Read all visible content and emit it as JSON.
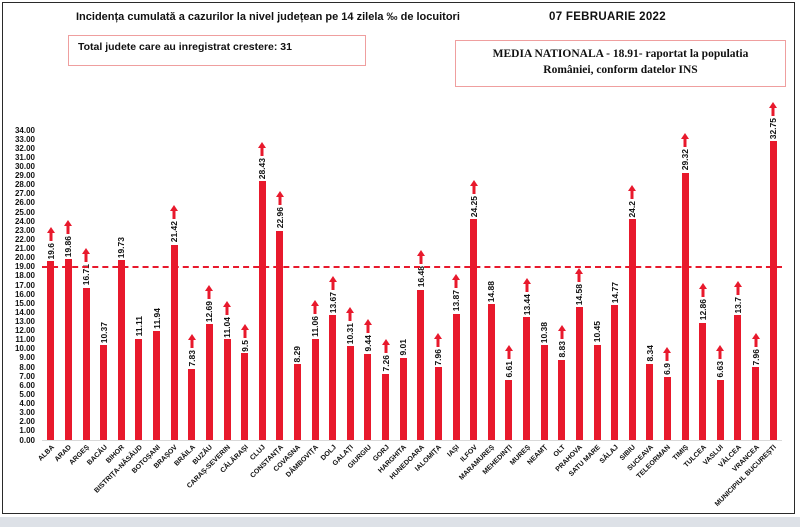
{
  "header": {
    "title": "Incidența cumulată a cazurilor la nivel județean pe 14 zilela ‰ de locuitori",
    "date": "07 FEBRUARIE 2022",
    "increase_box": "Total judete care au inregistrat crestere: 31",
    "media_line1": "MEDIA NATIONALA - 18.91-  raportat la populatia",
    "media_line2": "României, conform datelor INS"
  },
  "colors": {
    "bar": "#e8192c",
    "arrow": "#e8192c",
    "average_line": "#e8192c",
    "box_border": "#ef9f9f",
    "text": "#111111"
  },
  "chart_data": {
    "type": "bar",
    "title": "Incidența cumulată a cazurilor la nivel județean pe 14 zilela ‰ de locuitori",
    "xlabel": "",
    "ylabel": "",
    "ylim": [
      0,
      34
    ],
    "ytick_step": 1,
    "ytick_format": "0.00",
    "grid": false,
    "legend_position": "none",
    "average_line": 18.91,
    "average_line_style": "dashed-red",
    "categories": [
      "ALBA",
      "ARAD",
      "ARGEȘ",
      "BACĂU",
      "BIHOR",
      "BISTRIȚA-NĂSĂUD",
      "BOTOȘANI",
      "BRAȘOV",
      "BRĂILA",
      "BUZĂU",
      "CARAȘ-SEVERIN",
      "CĂLĂRAȘI",
      "CLUJ",
      "CONSTANȚA",
      "COVASNA",
      "DÂMBOVIȚA",
      "DOLJ",
      "GALAȚI",
      "GIURGIU",
      "GORJ",
      "HARGHITA",
      "HUNEDOARA",
      "IALOMIȚA",
      "IAȘI",
      "ILFOV",
      "MARAMUREȘ",
      "MEHEDINȚI",
      "MUREȘ",
      "NEAMȚ",
      "OLT",
      "PRAHOVA",
      "SATU MARE",
      "SĂLAJ",
      "SIBIU",
      "SUCEAVA",
      "TELEORMAN",
      "TIMIȘ",
      "TULCEA",
      "VASLUI",
      "VÂLCEA",
      "VRANCEA",
      "MUNICIPIUL BUCUREȘTI"
    ],
    "values": [
      19.6,
      19.86,
      16.71,
      10.37,
      19.73,
      11.11,
      11.94,
      21.42,
      7.83,
      12.69,
      11.04,
      9.5,
      28.43,
      22.96,
      8.29,
      11.06,
      13.67,
      10.31,
      9.44,
      7.26,
      9.01,
      16.48,
      7.96,
      13.87,
      24.25,
      14.88,
      6.61,
      13.44,
      10.38,
      8.83,
      14.58,
      10.45,
      14.77,
      24.2,
      8.34,
      6.9,
      29.32,
      12.86,
      6.63,
      13.7,
      7.96,
      32.75
    ],
    "increase": [
      true,
      true,
      true,
      false,
      false,
      false,
      false,
      true,
      true,
      true,
      true,
      true,
      true,
      true,
      false,
      true,
      true,
      true,
      true,
      true,
      false,
      true,
      true,
      true,
      true,
      false,
      true,
      true,
      false,
      true,
      true,
      false,
      false,
      true,
      false,
      true,
      true,
      true,
      true,
      true,
      true,
      true
    ]
  }
}
